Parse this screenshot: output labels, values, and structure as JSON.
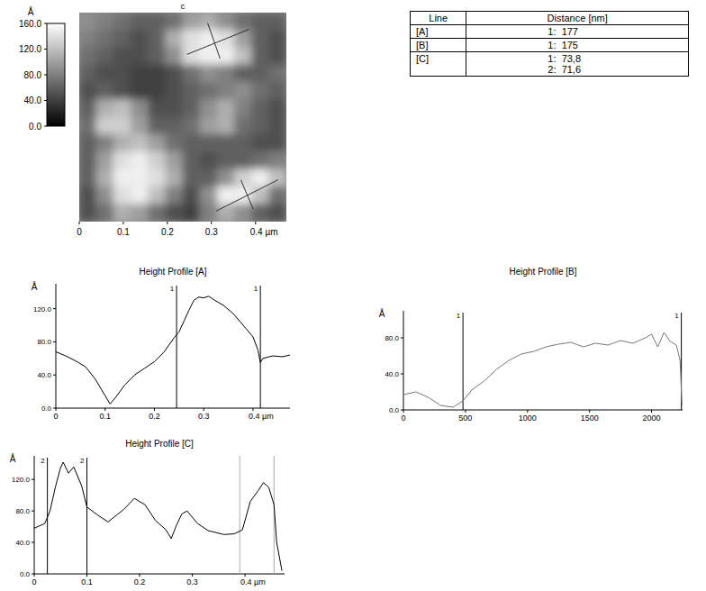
{
  "chart_data": [
    {
      "type": "heatmap",
      "title": "c",
      "xlim": [
        0,
        0.47
      ],
      "ylim": [
        0,
        0.47
      ],
      "xticks": [
        0,
        0.1,
        0.2,
        0.3,
        {
          "value": 0.4,
          "label": "0.4 µm"
        }
      ],
      "tick_labels": "x",
      "cells": [
        [
          90,
          80,
          70,
          60,
          60,
          70,
          100,
          110,
          90,
          70,
          60,
          60
        ],
        [
          80,
          70,
          60,
          50,
          60,
          110,
          140,
          150,
          140,
          100,
          60,
          50
        ],
        [
          70,
          60,
          50,
          50,
          60,
          90,
          140,
          150,
          150,
          120,
          60,
          50
        ],
        [
          60,
          50,
          50,
          40,
          40,
          50,
          70,
          90,
          80,
          60,
          60,
          70
        ],
        [
          50,
          60,
          50,
          40,
          40,
          50,
          60,
          70,
          80,
          90,
          70,
          60
        ],
        [
          60,
          110,
          120,
          90,
          50,
          50,
          60,
          90,
          110,
          80,
          60,
          50
        ],
        [
          70,
          130,
          130,
          100,
          60,
          60,
          70,
          100,
          110,
          70,
          60,
          50
        ],
        [
          60,
          80,
          110,
          120,
          100,
          70,
          60,
          60,
          60,
          60,
          50,
          50
        ],
        [
          60,
          100,
          140,
          150,
          130,
          100,
          60,
          50,
          60,
          60,
          70,
          80
        ],
        [
          60,
          110,
          150,
          150,
          140,
          110,
          60,
          60,
          90,
          130,
          150,
          120
        ],
        [
          50,
          90,
          140,
          150,
          120,
          80,
          50,
          90,
          150,
          150,
          120,
          70
        ],
        [
          50,
          70,
          110,
          100,
          70,
          50,
          40,
          80,
          110,
          90,
          60,
          50
        ]
      ],
      "color_range": [
        0,
        160
      ],
      "color_ticks": [
        {
          "value": 0,
          "label": "0.0"
        },
        {
          "value": 40,
          "label": "40.0"
        },
        {
          "value": 80,
          "label": "80.0"
        },
        {
          "value": 120,
          "label": "120.0"
        },
        {
          "value": 160,
          "label": "160.0"
        }
      ],
      "color_label": "Å"
    },
    {
      "type": "line",
      "title": "Height Profile [A]",
      "ylabel": "Å",
      "color": "#000000",
      "x": [
        0,
        0.02,
        0.04,
        0.06,
        0.08,
        0.1,
        0.11,
        0.12,
        0.14,
        0.16,
        0.18,
        0.2,
        0.22,
        0.24,
        0.25,
        0.26,
        0.27,
        0.28,
        0.29,
        0.3,
        0.31,
        0.32,
        0.34,
        0.36,
        0.38,
        0.4,
        0.41,
        0.415,
        0.42,
        0.44,
        0.46,
        0.475
      ],
      "values": [
        68,
        63,
        57,
        50,
        35,
        15,
        5,
        12,
        28,
        40,
        48,
        56,
        68,
        85,
        92,
        105,
        118,
        130,
        134,
        133,
        135,
        131,
        124,
        114,
        100,
        86,
        70,
        55,
        60,
        63,
        62,
        64
      ],
      "xlim": [
        0,
        0.475
      ],
      "ylim": [
        0,
        150
      ],
      "xticks": [
        0,
        0.1,
        0.2,
        0.3,
        {
          "value": 0.4,
          "label": "0.4 µm"
        }
      ],
      "yticks": [
        {
          "value": 0,
          "label": "0.0"
        },
        {
          "value": 40,
          "label": "40.0"
        },
        {
          "value": 80,
          "label": "80.0"
        },
        {
          "value": 120,
          "label": "120.0"
        }
      ],
      "annotations": [
        {
          "x": 0.245,
          "text": "1"
        },
        {
          "x": 0.415,
          "text": "1"
        }
      ]
    },
    {
      "type": "line",
      "title": "Height Profile [B]",
      "ylabel": "Å",
      "color": "#777777",
      "x": [
        0,
        100,
        200,
        300,
        400,
        480,
        550,
        650,
        750,
        850,
        950,
        1050,
        1150,
        1250,
        1350,
        1450,
        1550,
        1650,
        1750,
        1850,
        1950,
        2000,
        2050,
        2100,
        2150,
        2200,
        2230,
        2245
      ],
      "values": [
        17,
        20,
        14,
        5,
        3,
        10,
        22,
        32,
        45,
        55,
        62,
        65,
        70,
        73,
        75,
        70,
        74,
        72,
        77,
        74,
        80,
        84,
        70,
        86,
        76,
        72,
        55,
        5
      ],
      "xlim": [
        0,
        2250
      ],
      "ylim": [
        0,
        110
      ],
      "xticks": [
        0,
        500,
        1000,
        1500,
        2000
      ],
      "yticks": [
        {
          "value": 0,
          "label": "0.0"
        },
        {
          "value": 40,
          "label": "40.0"
        },
        {
          "value": 80,
          "label": "80.0"
        }
      ],
      "annotations": [
        {
          "x": 480,
          "text": "1"
        },
        {
          "x": 2240,
          "text": "1"
        }
      ]
    },
    {
      "type": "line",
      "title": "Height Profile [C]",
      "ylabel": "Å",
      "color": "#000000",
      "x": [
        0,
        0.02,
        0.03,
        0.04,
        0.05,
        0.055,
        0.065,
        0.075,
        0.09,
        0.1,
        0.12,
        0.14,
        0.17,
        0.19,
        0.21,
        0.23,
        0.25,
        0.26,
        0.27,
        0.28,
        0.29,
        0.31,
        0.33,
        0.36,
        0.38,
        0.395,
        0.41,
        0.425,
        0.435,
        0.445,
        0.455,
        0.46,
        0.47
      ],
      "values": [
        58,
        64,
        80,
        110,
        135,
        142,
        128,
        136,
        112,
        85,
        75,
        66,
        82,
        96,
        88,
        68,
        56,
        45,
        62,
        76,
        80,
        64,
        55,
        50,
        51,
        56,
        92,
        106,
        116,
        110,
        88,
        40,
        4
      ],
      "xlim": [
        0,
        0.475
      ],
      "ylim": [
        0,
        150
      ],
      "xticks": [
        0,
        0.1,
        0.2,
        0.3,
        {
          "value": 0.4,
          "label": "0.4 µm"
        }
      ],
      "yticks": [
        {
          "value": 0,
          "label": "0.0"
        },
        {
          "value": 40,
          "label": "40.0"
        },
        {
          "value": 80,
          "label": "80.0"
        },
        {
          "value": 120,
          "label": "120.0"
        }
      ],
      "annotations": [
        {
          "x": 0.025,
          "text": "2"
        },
        {
          "x": 0.1,
          "text": "2"
        }
      ],
      "reference_lines": [
        0.39,
        0.455
      ]
    }
  ],
  "table": {
    "header": [
      "Line",
      "Distance [nm]"
    ],
    "rows": [
      [
        "[A]",
        [
          "1:  177"
        ]
      ],
      [
        "[B]",
        [
          "1:  175"
        ]
      ],
      [
        "[C]",
        [
          "1:  73,8",
          "2:  71,6"
        ]
      ]
    ]
  }
}
